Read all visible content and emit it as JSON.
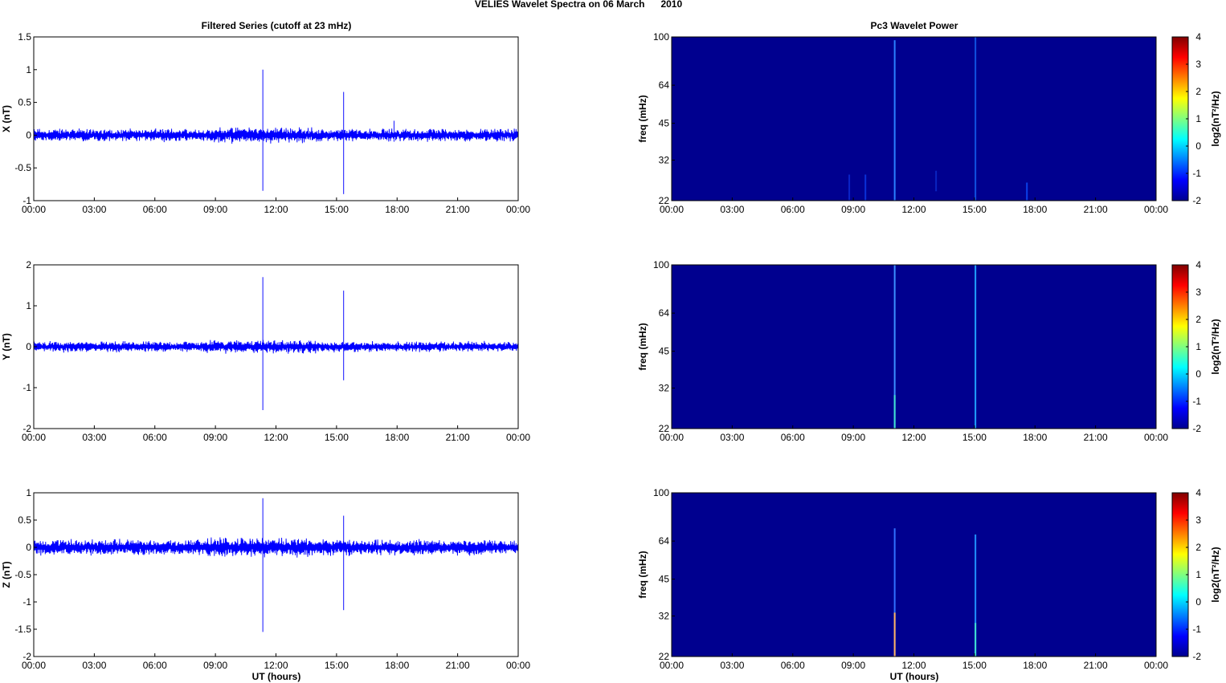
{
  "figure": {
    "title": "VELIES Wavelet Spectra on 06 March      2010",
    "left_title": "Filtered Series (cutoff at 23 mHz)",
    "right_title": "Pc3 Wavelet Power",
    "xlabel": "UT (hours)",
    "colors": {
      "trace": "#0000ff",
      "background": "#00008f"
    }
  },
  "chart_data": [
    {
      "type": "line",
      "ylabel": "X (nT)",
      "xticks": [
        "00:00",
        "03:00",
        "06:00",
        "09:00",
        "12:00",
        "15:00",
        "18:00",
        "21:00",
        "00:00"
      ],
      "yticks": [
        "1.5",
        "1",
        "0.5",
        "0",
        "-0.5",
        "-1"
      ],
      "ylim": [
        -1,
        1.5
      ],
      "xlim_hours": [
        0,
        24
      ],
      "noise_amplitude": 0.06,
      "spikes": [
        {
          "t": 11.35,
          "min": -0.85,
          "max": 1.0
        },
        {
          "t": 15.35,
          "min": -0.9,
          "max": 0.66
        },
        {
          "t": 17.85,
          "min": -0.1,
          "max": 0.22
        }
      ]
    },
    {
      "type": "line",
      "ylabel": "Y (nT)",
      "xticks": [
        "00:00",
        "03:00",
        "06:00",
        "09:00",
        "12:00",
        "15:00",
        "18:00",
        "21:00",
        "00:00"
      ],
      "yticks": [
        "2",
        "1",
        "0",
        "-1",
        "-2"
      ],
      "ylim": [
        -2,
        2
      ],
      "xlim_hours": [
        0,
        24
      ],
      "noise_amplitude": 0.08,
      "spikes": [
        {
          "t": 11.35,
          "min": -1.55,
          "max": 1.7
        },
        {
          "t": 15.35,
          "min": -0.82,
          "max": 1.37
        }
      ]
    },
    {
      "type": "line",
      "ylabel": "Z (nT)",
      "xticks": [
        "00:00",
        "03:00",
        "06:00",
        "09:00",
        "12:00",
        "15:00",
        "18:00",
        "21:00",
        "00:00"
      ],
      "yticks": [
        "1",
        "0.5",
        "0",
        "-0.5",
        "-1",
        "-1.5",
        "-2"
      ],
      "ylim": [
        -2,
        1
      ],
      "xlim_hours": [
        0,
        24
      ],
      "noise_amplitude": 0.09,
      "spikes": [
        {
          "t": 11.35,
          "min": -1.55,
          "max": 0.9
        },
        {
          "t": 15.35,
          "min": -1.15,
          "max": 0.58
        }
      ]
    },
    {
      "type": "heatmap",
      "ylabel": "freq (mHz)",
      "xticks": [
        "00:00",
        "03:00",
        "06:00",
        "09:00",
        "12:00",
        "15:00",
        "18:00",
        "21:00",
        "00:00"
      ],
      "yticks": [
        "100",
        "64",
        "45",
        "32",
        "22"
      ],
      "ylim_mhz": [
        22,
        100
      ],
      "y_scale": "log",
      "colorbar_ticks": [
        "4",
        "3",
        "2",
        "1",
        "0",
        "-1",
        "-2"
      ],
      "colorbar_range": [
        -2,
        4
      ],
      "colorbar_label": "log2(nT²/Hz)",
      "streaks": [
        {
          "t": 11.05,
          "fmin": 22,
          "fmax": 97,
          "color": "#2a7fff"
        },
        {
          "t": 15.05,
          "fmin": 22,
          "fmax": 100,
          "color": "#1050e0"
        },
        {
          "t": 8.8,
          "fmin": 22,
          "fmax": 28,
          "color": "#0a24c8"
        },
        {
          "t": 9.6,
          "fmin": 22,
          "fmax": 28,
          "color": "#0a30d8"
        },
        {
          "t": 13.1,
          "fmin": 24,
          "fmax": 29,
          "color": "#0a24c0"
        },
        {
          "t": 17.6,
          "fmin": 22,
          "fmax": 26,
          "color": "#0a40e8"
        }
      ]
    },
    {
      "type": "heatmap",
      "ylabel": "freq (mHz)",
      "xticks": [
        "00:00",
        "03:00",
        "06:00",
        "09:00",
        "12:00",
        "15:00",
        "18:00",
        "21:00",
        "00:00"
      ],
      "yticks": [
        "100",
        "64",
        "45",
        "32",
        "22"
      ],
      "ylim_mhz": [
        22,
        100
      ],
      "y_scale": "log",
      "colorbar_ticks": [
        "4",
        "3",
        "2",
        "1",
        "0",
        "-1",
        "-2"
      ],
      "colorbar_range": [
        -2,
        4
      ],
      "colorbar_label": "log2(nT²/Hz)",
      "streaks": [
        {
          "t": 11.05,
          "fmin": 22,
          "fmax": 100,
          "color": "#3a8fff"
        },
        {
          "t": 11.05,
          "fmin": 22,
          "fmax": 30,
          "color": "#40e0d0"
        },
        {
          "t": 15.05,
          "fmin": 22,
          "fmax": 100,
          "color": "#20a0ff"
        }
      ]
    },
    {
      "type": "heatmap",
      "ylabel": "freq (mHz)",
      "xticks": [
        "00:00",
        "03:00",
        "06:00",
        "09:00",
        "12:00",
        "15:00",
        "18:00",
        "21:00",
        "00:00"
      ],
      "yticks": [
        "100",
        "64",
        "45",
        "32",
        "22"
      ],
      "ylim_mhz": [
        22,
        100
      ],
      "y_scale": "log",
      "colorbar_ticks": [
        "4",
        "3",
        "2",
        "1",
        "0",
        "-1",
        "-2"
      ],
      "colorbar_range": [
        -2,
        4
      ],
      "colorbar_label": "log2(nT²/Hz)",
      "streaks": [
        {
          "t": 11.05,
          "fmin": 22,
          "fmax": 72,
          "color": "#3070ff"
        },
        {
          "t": 11.05,
          "fmin": 22,
          "fmax": 33,
          "color": "#ffb060"
        },
        {
          "t": 15.05,
          "fmin": 22,
          "fmax": 68,
          "color": "#2090ff"
        },
        {
          "t": 15.05,
          "fmin": 22,
          "fmax": 30,
          "color": "#40e0d0"
        }
      ]
    }
  ]
}
